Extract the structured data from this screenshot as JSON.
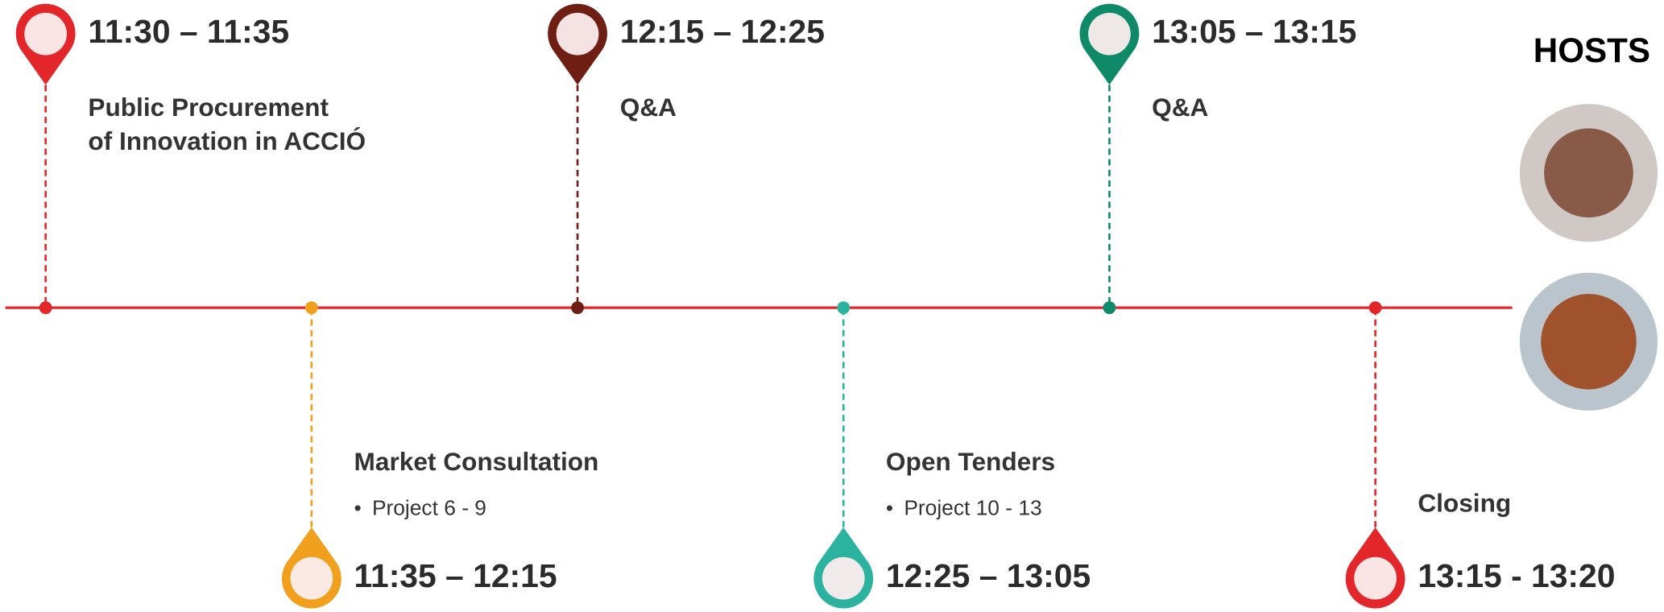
{
  "hosts": {
    "title": "HOSTS"
  },
  "events": [
    {
      "time": "11:30 – 11:35",
      "position": "top",
      "color": "#e3262a",
      "lines": [
        "Public Procurement",
        "of Innovation in ACCIÓ"
      ],
      "bullets": []
    },
    {
      "time": "11:35 – 12:15",
      "position": "bottom",
      "color": "#f0a01c",
      "lines": [
        "Market Consultation"
      ],
      "bullets": [
        "Project 6 - 9"
      ]
    },
    {
      "time": "12:15 – 12:25",
      "position": "top",
      "color": "#6e1e12",
      "lines": [
        "Q&A"
      ],
      "bullets": []
    },
    {
      "time": "12:25 – 13:05",
      "position": "bottom",
      "color": "#2bb3a0",
      "lines": [
        "Open Tenders"
      ],
      "bullets": [
        "Project 10 - 13"
      ]
    },
    {
      "time": "13:05 – 13:15",
      "position": "top",
      "color": "#0e8a68",
      "lines": [
        "Q&A"
      ],
      "bullets": []
    },
    {
      "time": "13:15 - 13:20",
      "position": "bottom",
      "color": "#e3262a",
      "lines": [
        "Closing"
      ],
      "bullets": []
    }
  ]
}
